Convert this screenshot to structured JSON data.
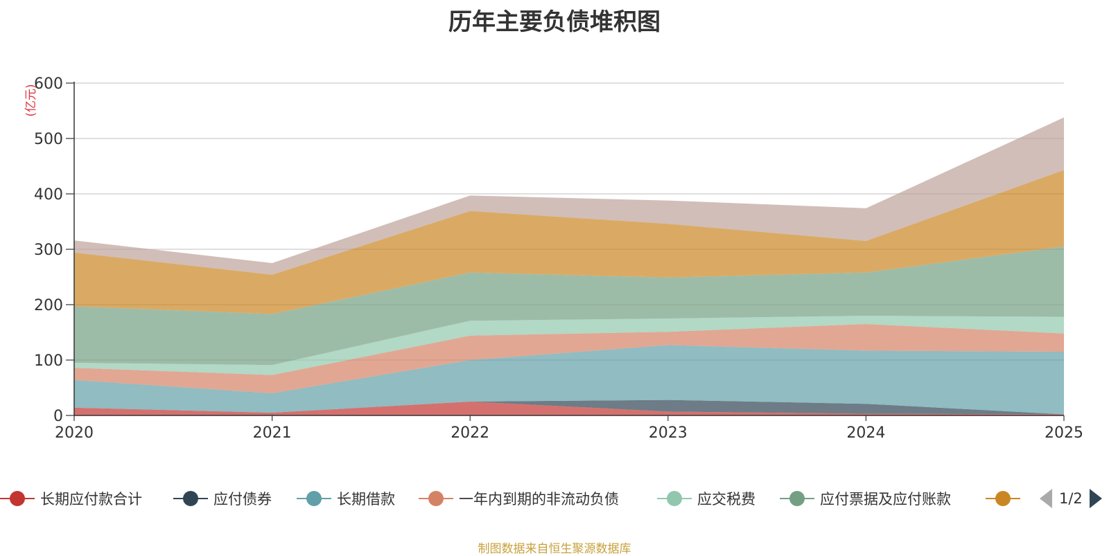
{
  "chart_data": {
    "type": "area",
    "stacked": true,
    "title": "历年主要负债堆积图",
    "ylabel": "(亿元)",
    "xlabel": "",
    "categories": [
      "2020",
      "2021",
      "2022",
      "2023",
      "2024",
      "2025"
    ],
    "ylim": [
      0,
      600
    ],
    "yticks": [
      0,
      100,
      200,
      300,
      400,
      500,
      600
    ],
    "grid": true,
    "series": [
      {
        "name": "长期应付款合计",
        "color": "#c23531",
        "values": [
          14,
          5,
          25,
          7,
          3,
          2
        ]
      },
      {
        "name": "应付债券",
        "color": "#2f4554",
        "values": [
          0,
          0,
          0,
          21,
          18,
          0
        ]
      },
      {
        "name": "长期借款",
        "color": "#61a0a8",
        "values": [
          50,
          35,
          75,
          99,
          96,
          113
        ]
      },
      {
        "name": "一年内到期的非流动负债",
        "color": "#d48265",
        "values": [
          22,
          33,
          44,
          24,
          48,
          33
        ]
      },
      {
        "name": "应交税费",
        "color": "#91c7ae",
        "values": [
          9,
          18,
          27,
          24,
          15,
          30
        ]
      },
      {
        "name": "应付票据及应付账款",
        "color": "#749f83",
        "values": [
          102,
          92,
          87,
          74,
          78,
          127
        ]
      },
      {
        "name": "",
        "color": "#ca8622",
        "values": [
          97,
          71,
          111,
          97,
          57,
          138
        ]
      },
      {
        "name": "",
        "color": "#bda29a",
        "values": [
          22,
          21,
          28,
          42,
          59,
          95
        ]
      }
    ],
    "legend_position": "bottom",
    "legend_page": "1/2",
    "source_note": "制图数据来自恒生聚源数据库"
  }
}
